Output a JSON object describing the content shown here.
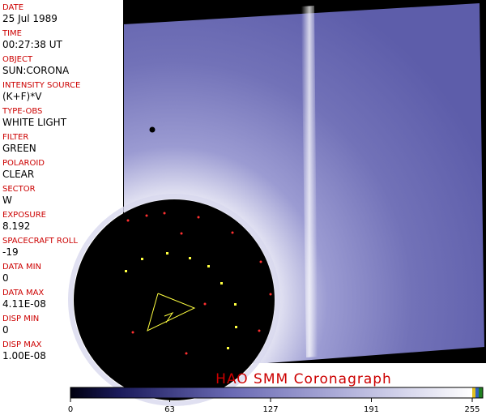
{
  "fields": [
    {
      "label": "DATE",
      "value": "25 Jul 1989"
    },
    {
      "label": "TIME",
      "value": "00:27:38 UT"
    },
    {
      "label": "OBJECT",
      "value": "SUN:CORONA"
    },
    {
      "label": "INTENSITY SOURCE",
      "value": "(K+F)*V"
    },
    {
      "label": "TYPE-OBS",
      "value": "WHITE LIGHT"
    },
    {
      "label": "FILTER",
      "value": "GREEN"
    },
    {
      "label": "POLAROID",
      "value": "CLEAR"
    },
    {
      "label": "SECTOR",
      "value": "W"
    },
    {
      "label": "EXPOSURE",
      "value": "8.192"
    },
    {
      "label": "SPACECRAFT ROLL",
      "value": "-19"
    },
    {
      "label": "DATA MIN",
      "value": "0"
    },
    {
      "label": "DATA MAX",
      "value": "4.11E-08"
    },
    {
      "label": "DISP MIN",
      "value": "0"
    },
    {
      "label": "DISP MAX",
      "value": "1.00E-08"
    }
  ],
  "title": "HAO  SMM Coronagraph",
  "colorbar": {
    "ticks": [
      0,
      63,
      127,
      191,
      255
    ]
  }
}
